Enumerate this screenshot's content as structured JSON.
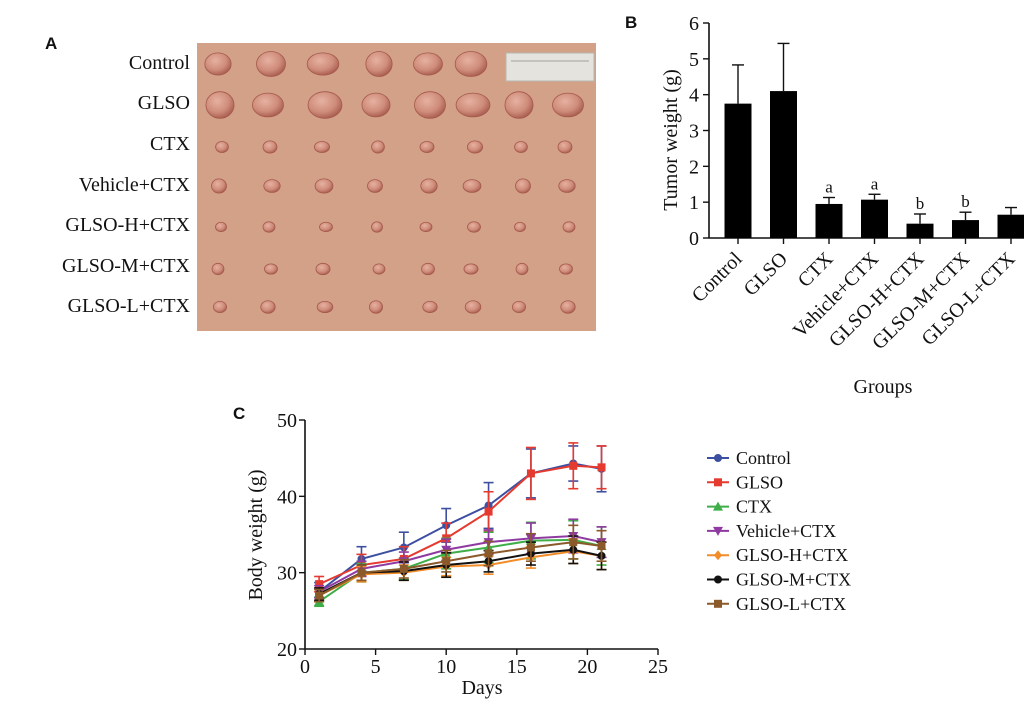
{
  "panels": {
    "a": "A",
    "b": "B",
    "c": "C"
  },
  "photo": {
    "rows": [
      "Control",
      "GLSO",
      "CTX",
      "Vehicle+CTX",
      "GLSO-H+CTX",
      "GLSO-M+CTX",
      "GLSO-L+CTX"
    ],
    "tumors_per_row": [
      6,
      8,
      8,
      8,
      8,
      8,
      8
    ],
    "tumor_scale": [
      1.35,
      1.45,
      0.6,
      0.72,
      0.5,
      0.55,
      0.62
    ],
    "ruler_visible": true,
    "colors": {
      "background": "#d3a187",
      "tumor": "#cf8c7a",
      "tumor_dark": "#a4584b",
      "ruler": "#e4e3dd"
    }
  },
  "chart_data": [
    {
      "type": "bar",
      "categories": [
        "Control",
        "GLSO",
        "CTX",
        "Vehicle+CTX",
        "GLSO-H+CTX",
        "GLSO-M+CTX",
        "GLSO-L+CTX"
      ],
      "values": [
        3.75,
        4.1,
        0.95,
        1.07,
        0.4,
        0.5,
        0.65
      ],
      "errors": [
        1.08,
        1.33,
        0.18,
        0.15,
        0.27,
        0.22,
        0.2
      ],
      "annotations": [
        "",
        "",
        "a",
        "a",
        "b",
        "b",
        ""
      ],
      "xlabel": "Groups",
      "ylabel": "Tumor weight (g)",
      "ylim": [
        0,
        6
      ],
      "yticks": [
        0,
        1,
        2,
        3,
        4,
        5,
        6
      ],
      "bar_color": "#000000"
    },
    {
      "type": "line",
      "x": [
        1,
        4,
        7,
        10,
        13,
        16,
        19,
        21
      ],
      "series": [
        {
          "name": "Control",
          "marker": "circle",
          "color": "#3c4fa0",
          "values": [
            27.5,
            31.8,
            33.3,
            36.2,
            38.8,
            43.0,
            44.3,
            43.6
          ],
          "errors": [
            1.2,
            1.6,
            2.0,
            2.2,
            3.0,
            3.2,
            2.3,
            3.0
          ]
        },
        {
          "name": "GLSO",
          "marker": "square",
          "color": "#e53a2f",
          "values": [
            28.5,
            31.0,
            31.8,
            34.5,
            38.0,
            43.0,
            44.0,
            43.8
          ],
          "errors": [
            1.0,
            1.4,
            1.6,
            2.0,
            2.6,
            3.4,
            3.0,
            2.8
          ]
        },
        {
          "name": "CTX",
          "marker": "triangle-up",
          "color": "#3fae49",
          "values": [
            26.2,
            30.0,
            30.5,
            32.5,
            33.3,
            34.2,
            34.3,
            33.5
          ],
          "errors": [
            0.6,
            1.2,
            1.4,
            2.0,
            2.0,
            2.4,
            2.5,
            2.5
          ]
        },
        {
          "name": "Vehicle+CTX",
          "marker": "triangle-down",
          "color": "#8f3aa1",
          "values": [
            27.5,
            30.5,
            31.5,
            33.0,
            34.0,
            34.5,
            34.8,
            34.0
          ],
          "errors": [
            0.8,
            1.0,
            1.2,
            1.4,
            1.6,
            2.0,
            2.2,
            2.0
          ]
        },
        {
          "name": "GLSO-H+CTX",
          "marker": "diamond",
          "color": "#f28c28",
          "values": [
            27.0,
            29.8,
            30.0,
            30.8,
            31.0,
            32.0,
            32.8,
            32.2
          ],
          "errors": [
            0.8,
            1.0,
            1.0,
            1.2,
            1.2,
            1.4,
            1.6,
            1.8
          ]
        },
        {
          "name": "GLSO-M+CTX",
          "marker": "circle",
          "color": "#111111",
          "values": [
            27.2,
            30.0,
            30.2,
            31.0,
            31.5,
            32.5,
            33.0,
            32.2
          ],
          "errors": [
            0.8,
            1.0,
            1.2,
            1.6,
            1.4,
            1.5,
            1.8,
            1.8
          ]
        },
        {
          "name": "GLSO-L+CTX",
          "marker": "square",
          "color": "#8b5a2b",
          "values": [
            27.0,
            30.0,
            30.5,
            31.5,
            32.5,
            33.3,
            34.0,
            33.5
          ],
          "errors": [
            0.8,
            1.0,
            1.2,
            1.4,
            1.6,
            1.8,
            2.2,
            2.0
          ]
        }
      ],
      "xlabel": "Days",
      "ylabel": "Body weight (g)",
      "xlim": [
        0,
        25
      ],
      "ylim": [
        20,
        50
      ],
      "xticks": [
        0,
        5,
        10,
        15,
        20,
        25
      ],
      "yticks": [
        20,
        30,
        40,
        50
      ],
      "legend_position": "right"
    }
  ]
}
